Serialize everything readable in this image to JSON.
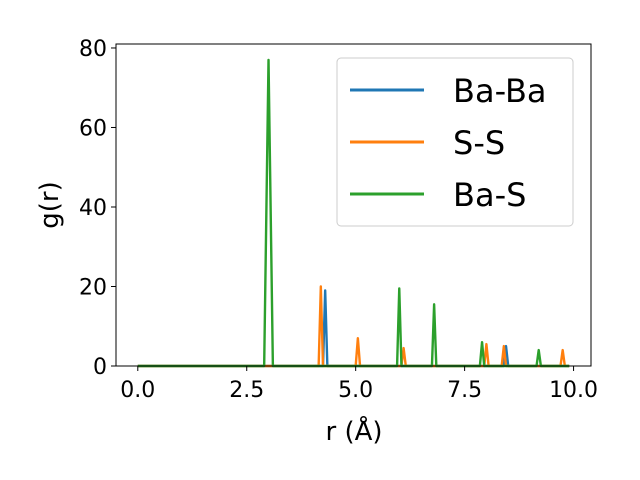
{
  "chart_data": {
    "type": "line",
    "title": "",
    "xlabel": "r (Å)",
    "ylabel": "g(r)",
    "xlim": [
      -0.5,
      10.4
    ],
    "ylim": [
      0,
      81
    ],
    "xticks": [
      0.0,
      2.5,
      5.0,
      7.5,
      10.0
    ],
    "xtick_labels": [
      "0.0",
      "2.5",
      "5.0",
      "7.5",
      "10.0"
    ],
    "yticks": [
      0,
      20,
      40,
      60,
      80
    ],
    "ytick_labels": [
      "0",
      "20",
      "40",
      "60",
      "80"
    ],
    "grid": false,
    "legend_position": "top-right",
    "series": [
      {
        "name": "Ba-Ba",
        "color": "#1f77b4",
        "x": [
          0.0,
          4.25,
          4.3,
          4.35,
          8.4,
          8.45,
          8.5,
          9.9
        ],
        "y": [
          0,
          0,
          19,
          0,
          0,
          5,
          0,
          0
        ]
      },
      {
        "name": "S-S",
        "color": "#ff7f0e",
        "x": [
          0.0,
          4.15,
          4.2,
          4.25,
          5.0,
          5.05,
          5.1,
          6.05,
          6.1,
          6.15,
          7.95,
          8.0,
          8.05,
          8.35,
          8.4,
          8.45,
          9.7,
          9.75,
          9.8,
          9.9
        ],
        "y": [
          0,
          0,
          20,
          0,
          0,
          7,
          0,
          0,
          4.5,
          0,
          0,
          5.5,
          0,
          0,
          5,
          0,
          0,
          4,
          0,
          0
        ]
      },
      {
        "name": "Ba-S",
        "color": "#2ca02c",
        "x": [
          0.0,
          2.9,
          3.0,
          3.1,
          5.95,
          6.0,
          6.05,
          6.75,
          6.8,
          6.85,
          7.85,
          7.9,
          7.95,
          9.15,
          9.2,
          9.25,
          9.9
        ],
        "y": [
          0,
          0,
          77,
          0,
          0,
          19.5,
          0,
          0,
          15.5,
          0,
          0,
          6,
          0,
          0,
          4,
          0,
          0
        ]
      }
    ]
  }
}
